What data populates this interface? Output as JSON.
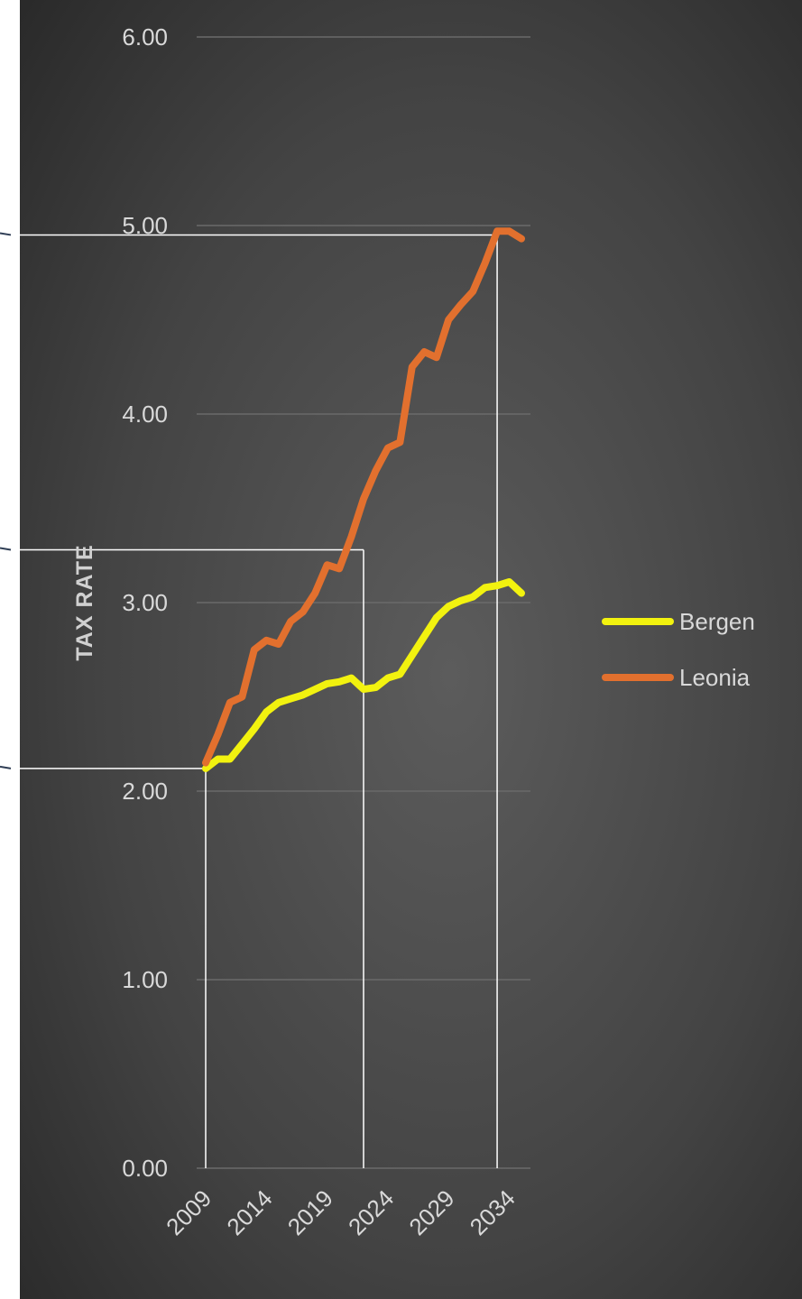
{
  "chart_data": {
    "type": "line",
    "title": "",
    "xlabel": "",
    "ylabel": "TAX RATE",
    "x_tick_labels": [
      "2009",
      "2014",
      "2019",
      "2024",
      "2029",
      "2034"
    ],
    "y_tick_labels": [
      "0.00",
      "1.00",
      "2.00",
      "3.00",
      "4.00",
      "5.00",
      "6.00"
    ],
    "ylim": [
      0,
      6
    ],
    "xlim": [
      2009,
      2035
    ],
    "grid": "horizontal",
    "legend_position": "right",
    "series": [
      {
        "name": "Bergen",
        "color": "#f2f20f",
        "x": [
          2009,
          2010,
          2011,
          2012,
          2013,
          2014,
          2015,
          2016,
          2017,
          2018,
          2019,
          2020,
          2021,
          2022,
          2023,
          2024,
          2025,
          2026,
          2027,
          2028,
          2029,
          2030,
          2031,
          2032,
          2033,
          2034,
          2035
        ],
        "values": [
          2.12,
          2.17,
          2.17,
          2.25,
          2.33,
          2.42,
          2.47,
          2.49,
          2.51,
          2.54,
          2.57,
          2.58,
          2.6,
          2.54,
          2.55,
          2.6,
          2.62,
          2.72,
          2.82,
          2.92,
          2.98,
          3.01,
          3.03,
          3.08,
          3.09,
          3.11,
          3.05
        ]
      },
      {
        "name": "Leonia",
        "color": "#e2702e",
        "x": [
          2009,
          2010,
          2011,
          2012,
          2013,
          2014,
          2015,
          2016,
          2017,
          2018,
          2019,
          2020,
          2021,
          2022,
          2023,
          2024,
          2025,
          2026,
          2027,
          2028,
          2029,
          2030,
          2031,
          2032,
          2033,
          2034,
          2035
        ],
        "values": [
          2.15,
          2.3,
          2.47,
          2.5,
          2.75,
          2.8,
          2.78,
          2.9,
          2.95,
          3.05,
          3.2,
          3.18,
          3.35,
          3.55,
          3.7,
          3.82,
          3.85,
          4.25,
          4.33,
          4.3,
          4.5,
          4.58,
          4.65,
          4.8,
          4.97,
          4.97,
          4.93
        ]
      }
    ],
    "annotations": {
      "line_color": "#ffffff",
      "guides": [
        {
          "x": 2009,
          "y": 2.12
        },
        {
          "x": 2022,
          "y": 3.28
        },
        {
          "x": 2033,
          "y": 4.95
        }
      ]
    }
  }
}
